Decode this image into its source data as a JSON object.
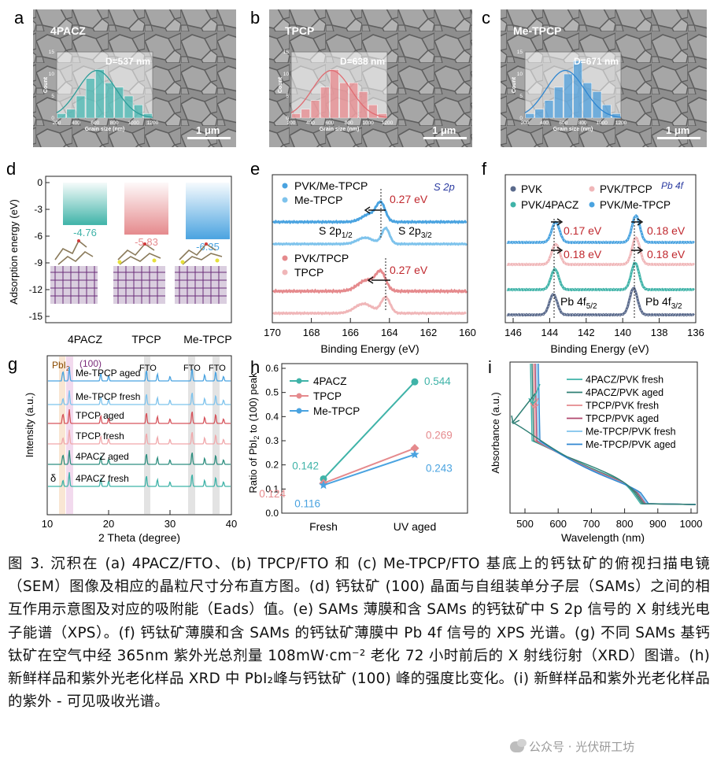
{
  "panels": {
    "a": {
      "letter": "a",
      "material": "4PACZ",
      "d_label": "D=537 nm",
      "scale": "1 μm",
      "hist": {
        "values": [
          1,
          2,
          5,
          9,
          11,
          8,
          7,
          5,
          3,
          1
        ],
        "color": "#47b8b3",
        "line": "#2e9d99"
      }
    },
    "b": {
      "letter": "b",
      "material": "TPCP",
      "d_label": "D=638 nm",
      "scale": "1 μm",
      "hist": {
        "values": [
          1,
          2,
          4,
          7,
          11,
          8,
          8,
          6,
          3,
          1
        ],
        "color": "#e98b8f",
        "line": "#e06c72"
      }
    },
    "c": {
      "letter": "c",
      "material": "Me-TPCP",
      "d_label": "D=671 nm",
      "scale": "1 μm",
      "hist": {
        "values": [
          1,
          2,
          4,
          7,
          10,
          13,
          8,
          6,
          3,
          1
        ],
        "color": "#4e9fdc",
        "line": "#2f86d0"
      }
    },
    "hist_axis": {
      "ylabel": "Count",
      "xlabel": "Grain size (nm)",
      "xticks": [
        "200",
        "400",
        "600",
        "800",
        "1000",
        "1200"
      ],
      "yticks": [
        "0",
        "5",
        "10",
        "15"
      ]
    },
    "d": {
      "letter": "d",
      "ylabel": "Adsorption energy (eV)",
      "yticks": [
        "0",
        "-3",
        "-6",
        "-9",
        "-12",
        "-15"
      ],
      "bars": [
        {
          "name": "4PACZ",
          "value": "-4.76",
          "color": "#3fb3a8"
        },
        {
          "name": "TPCP",
          "value": "-5.83",
          "color": "#e58a8d"
        },
        {
          "name": "Me-TPCP",
          "value": "-6.35",
          "color": "#4aa3e0"
        }
      ]
    },
    "e": {
      "letter": "e",
      "xlabel": "Binding Energy (eV)",
      "xticks": [
        "170",
        "168",
        "166",
        "164",
        "162",
        "160"
      ],
      "tag": "S 2p",
      "legend_top": [
        "PVK/Me-TPCP",
        "Me-TPCP"
      ],
      "legend_bottom": [
        "PVK/TPCP",
        "TPCP"
      ],
      "shift": "0.27 eV",
      "peak1": "S 2p",
      "sub1": "1/2",
      "peak2": "S 2p",
      "sub2": "3/2"
    },
    "f": {
      "letter": "f",
      "xlabel": "Binding Energy (eV)",
      "xticks": [
        "146",
        "144",
        "142",
        "140",
        "138",
        "136"
      ],
      "tag": "Pb 4f",
      "legend": [
        "PVK",
        "PVK/TPCP",
        "PVK/4PACZ",
        "PVK/Me-TPCP"
      ],
      "shifts": [
        "0.17 eV",
        "0.18 eV",
        "0.18 eV",
        "0.18 eV"
      ],
      "peak1": "Pb 4f",
      "sub1": "5/2",
      "peak2": "Pb 4f",
      "sub2": "3/2"
    },
    "g": {
      "letter": "g",
      "ylabel": "Intensity (a.u.)",
      "xlabel": "2 Theta (degree)",
      "xticks": [
        "10",
        "20",
        "30",
        "40"
      ],
      "pbi2": "PbI",
      "pbi2_sub": "2",
      "hkl": "(100)",
      "fto": "FTO",
      "delta": "δ",
      "traces": [
        "Me-TPCP aged",
        "Me-TPCP fresh",
        "TPCP aged",
        "TPCP fresh",
        "4PACZ aged",
        "4PACZ fresh"
      ]
    },
    "h": {
      "letter": "h",
      "ylabel_pre": "Ratio of PbI",
      "ylabel_sub": "2",
      "ylabel_post": " to (100) peak",
      "yticks": [
        "0.0",
        "0.1",
        "0.2",
        "0.3",
        "0.4",
        "0.5",
        "0.6"
      ],
      "categories": [
        "Fresh",
        "UV aged"
      ]
    },
    "i": {
      "letter": "i",
      "ylabel": "Absorbance (a.u.)",
      "xlabel": "Wavelength (nm)",
      "xticks": [
        "500",
        "600",
        "700",
        "800",
        "900",
        "1000"
      ],
      "legend": [
        "4PACZ/PVK fresh",
        "4PACZ/PVK aged",
        "TPCP/PVK fresh",
        "TPCP/PVK aged",
        "Me-TPCP/PVK fresh",
        "Me-TPCP/PVK aged"
      ]
    }
  },
  "chart_data": [
    {
      "type": "line",
      "title": "",
      "xlabel": "",
      "ylabel": "Ratio of PbI2 to (100) peak",
      "categories": [
        "Fresh",
        "UV aged"
      ],
      "ylim": [
        0,
        0.6
      ],
      "series": [
        {
          "name": "4PACZ",
          "values": [
            0.142,
            0.544
          ],
          "color": "#3fb3a8"
        },
        {
          "name": "TPCP",
          "values": [
            0.124,
            0.269
          ],
          "color": "#e58a8d"
        },
        {
          "name": "Me-TPCP",
          "values": [
            0.116,
            0.243
          ],
          "color": "#4aa3e0"
        }
      ]
    },
    {
      "type": "bar",
      "title": "",
      "ylabel": "Adsorption energy (eV)",
      "categories": [
        "4PACZ",
        "TPCP",
        "Me-TPCP"
      ],
      "values": [
        -4.76,
        -5.83,
        -6.35
      ],
      "ylim": [
        -15,
        0
      ]
    }
  ],
  "caption": "图 3. 沉积在 (a) 4PACZ/FTO、(b) TPCP/FTO 和 (c) Me-TPCP/FTO 基底上的钙钛矿的俯视扫描电镜（SEM）图像及相应的晶粒尺寸分布直方图。(d) 钙钛矿 (100) 晶面与自组装单分子层（SAMs）之间的相互作用示意图及对应的吸附能（Eads）值。(e) SAMs 薄膜和含 SAMs 的钙钛矿中 S 2p 信号的 X 射线光电子能谱（XPS）。(f) 钙钛矿薄膜和含 SAMs 的钙钛矿薄膜中 Pb 4f 信号的 XPS 光谱。(g) 不同 SAMs 基钙钛矿在空气中经 365nm 紫外光总剂量 108mW·cm⁻² 老化 72 小时前后的 X 射线衍射（XRD）图谱。(h) 新鲜样品和紫外光老化样品 XRD 中 PbI₂峰与钙钛矿 (100) 峰的强度比变化。(i) 新鲜样品和紫外光老化样品的紫外 - 可见吸收光谱。",
  "watermark": "公众号 · 光伏研工坊"
}
